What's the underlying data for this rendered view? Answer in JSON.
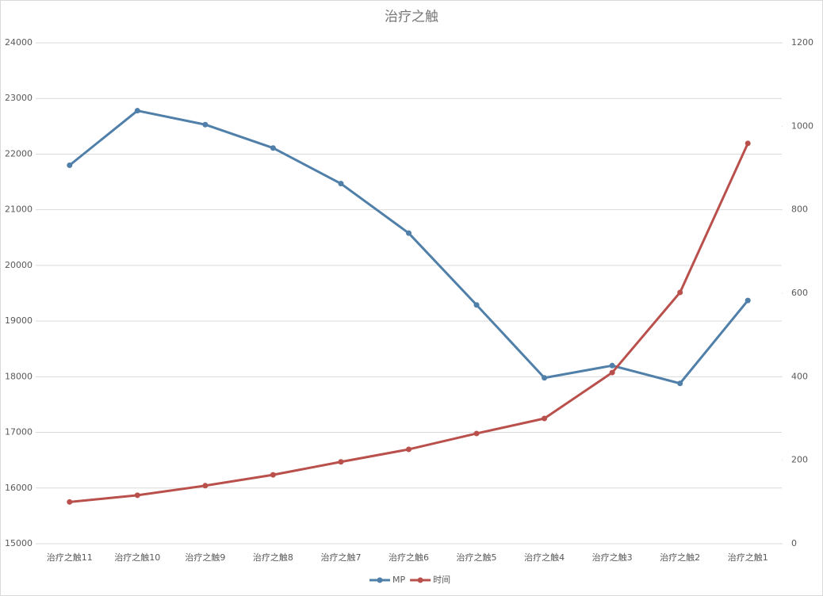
{
  "chart_data": {
    "type": "line",
    "title": "治疗之触",
    "categories": [
      "治疗之触11",
      "治疗之触10",
      "治疗之触9",
      "治疗之触8",
      "治疗之触7",
      "治疗之触6",
      "治疗之触5",
      "治疗之触4",
      "治疗之触3",
      "治疗之触2",
      "治疗之触1"
    ],
    "series": [
      {
        "name": "MP",
        "color": "#5080a9",
        "values": [
          21800,
          22780,
          22530,
          22110,
          21470,
          20580,
          19290,
          17980,
          18200,
          17880,
          19370
        ]
      },
      {
        "name": "时间",
        "color": "#b9504c",
        "axis": "y2",
        "values": [
          100,
          116,
          139,
          165,
          196,
          226,
          264,
          300,
          410,
          602,
          959
        ]
      }
    ],
    "ylim": [
      15000,
      24000
    ],
    "yticks": [
      15000,
      16000,
      17000,
      18000,
      19000,
      20000,
      21000,
      22000,
      23000,
      24000
    ],
    "y2lim": [
      0,
      1200
    ],
    "y2ticks": [
      0,
      200,
      400,
      600,
      800,
      1000,
      1200
    ],
    "grid": true,
    "legend": "bottom"
  }
}
